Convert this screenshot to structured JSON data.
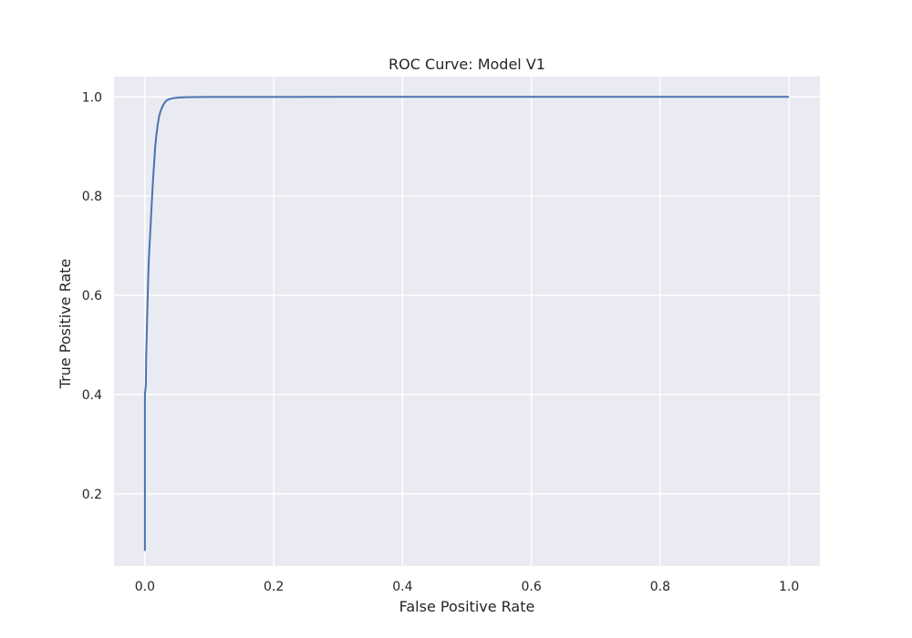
{
  "chart_data": {
    "type": "line",
    "title": "ROC Curve: Model V1",
    "xlabel": "False Positive Rate",
    "ylabel": "True Positive Rate",
    "xlim": [
      -0.048,
      1.048
    ],
    "ylim": [
      0.0547,
      1.0409
    ],
    "grid": true,
    "legend": "none",
    "xticks": [
      0.0,
      0.2,
      0.4,
      0.6,
      0.8,
      1.0
    ],
    "xtick_labels": [
      "0.0",
      "0.2",
      "0.4",
      "0.6",
      "0.8",
      "1.0"
    ],
    "yticks": [
      0.2,
      0.4,
      0.6,
      0.8,
      1.0
    ],
    "ytick_labels": [
      "0.2",
      "0.4",
      "0.6",
      "0.8",
      "1.0"
    ],
    "colors": {
      "line": "#4c72b0",
      "plot_background": "#eaeaf2",
      "grid": "#ffffff"
    },
    "series": [
      {
        "x": [
          0.0,
          0.0,
          0.0,
          0.0,
          0.0015,
          0.002,
          0.003,
          0.004,
          0.005,
          0.006,
          0.008,
          0.01,
          0.012,
          0.014,
          0.016,
          0.018,
          0.02,
          0.022,
          0.024,
          0.027,
          0.03,
          0.033,
          0.037,
          0.042,
          0.048,
          0.055,
          0.065,
          0.08,
          0.1,
          0.15,
          0.2,
          0.3,
          0.4,
          0.5,
          0.6,
          0.7,
          0.8,
          0.9,
          1.0
        ],
        "y": [
          0.085,
          0.18,
          0.3,
          0.4,
          0.42,
          0.48,
          0.53,
          0.58,
          0.63,
          0.67,
          0.72,
          0.77,
          0.82,
          0.86,
          0.9,
          0.925,
          0.945,
          0.96,
          0.97,
          0.98,
          0.987,
          0.992,
          0.995,
          0.997,
          0.998,
          0.999,
          0.9993,
          0.9995,
          0.9997,
          0.9998,
          0.9999,
          1.0,
          1.0,
          1.0,
          1.0,
          1.0,
          1.0,
          1.0,
          1.0
        ]
      }
    ]
  }
}
